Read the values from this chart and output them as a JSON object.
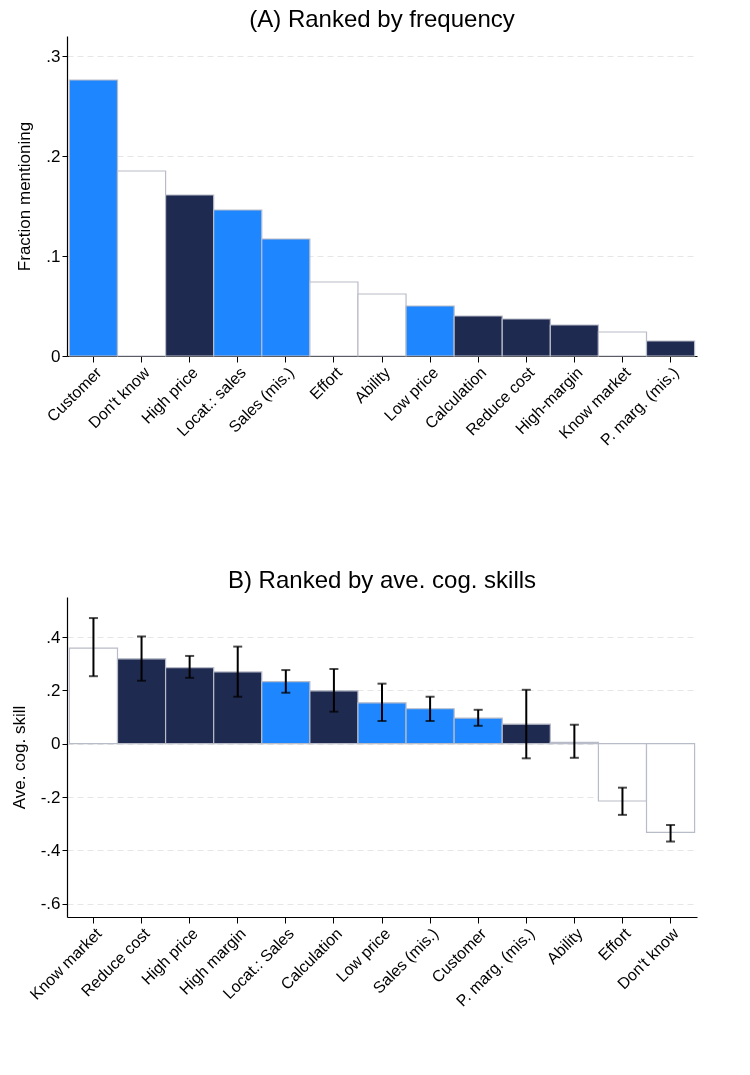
{
  "chart_data": [
    {
      "type": "bar",
      "title": "(A) Ranked by frequency",
      "ylabel": "Fraction mentioning",
      "categories": [
        "Customer",
        "Don't know",
        "High price",
        "Locat.: sales",
        "Sales (mis.)",
        "Effort",
        "Ability",
        "Low price",
        "Calculation",
        "Reduce cost",
        "High-margin",
        "Know market",
        "P. marg. (mis.)"
      ],
      "values": [
        0.276,
        0.185,
        0.161,
        0.146,
        0.117,
        0.074,
        0.062,
        0.05,
        0.04,
        0.037,
        0.031,
        0.024,
        0.015
      ],
      "colors": [
        "#1e87ff",
        "#ffffff",
        "#1f2a50",
        "#1e87ff",
        "#1e87ff",
        "#ffffff",
        "#ffffff",
        "#1e87ff",
        "#1f2a50",
        "#1f2a50",
        "#1f2a50",
        "#ffffff",
        "#1f2a50"
      ],
      "ylim": [
        0,
        0.32
      ],
      "yticks": [
        0,
        {
          "value": 0.1,
          "label": ".1"
        },
        {
          "value": 0.2,
          "label": ".2"
        },
        {
          "value": 0.3,
          "label": ".3"
        }
      ],
      "grid": "y"
    },
    {
      "type": "bar",
      "title": "B) Ranked by ave. cog. skills",
      "ylabel": "Ave. cog. skill",
      "categories": [
        "Know market",
        "Reduce cost",
        "High price",
        "High margin",
        "Locat.: Sales",
        "Calculation",
        "Low price",
        "Sales (mis.)",
        "Customer",
        "P. marg. (mis.)",
        "Ability",
        "Effort",
        "Don't know"
      ],
      "values": [
        0.358,
        0.318,
        0.285,
        0.269,
        0.233,
        0.198,
        0.153,
        0.131,
        0.096,
        0.073,
        0.005,
        -0.215,
        -0.333
      ],
      "errors": [
        [
          0.253,
          0.471
        ],
        [
          0.236,
          0.402
        ],
        [
          0.247,
          0.329
        ],
        [
          0.176,
          0.364
        ],
        [
          0.191,
          0.276
        ],
        [
          0.12,
          0.28
        ],
        [
          0.085,
          0.225
        ],
        [
          0.085,
          0.176
        ],
        [
          0.067,
          0.127
        ],
        [
          -0.055,
          0.202
        ],
        [
          -0.053,
          0.071
        ],
        [
          -0.267,
          -0.165
        ],
        [
          -0.367,
          -0.305
        ]
      ],
      "colors": [
        "#ffffff",
        "#1f2a50",
        "#1f2a50",
        "#1f2a50",
        "#1e87ff",
        "#1f2a50",
        "#1e87ff",
        "#1e87ff",
        "#1e87ff",
        "#1f2a50",
        "#ffffff",
        "#ffffff",
        "#ffffff"
      ],
      "ylim": [
        -0.65,
        0.55
      ],
      "yticks": [
        {
          "value": -0.6,
          "label": "-.6"
        },
        {
          "value": -0.4,
          "label": "-.4"
        },
        {
          "value": -0.2,
          "label": "-.2"
        },
        0,
        {
          "value": 0.2,
          "label": ".2"
        },
        {
          "value": 0.4,
          "label": ".4"
        }
      ],
      "grid": "y"
    }
  ]
}
